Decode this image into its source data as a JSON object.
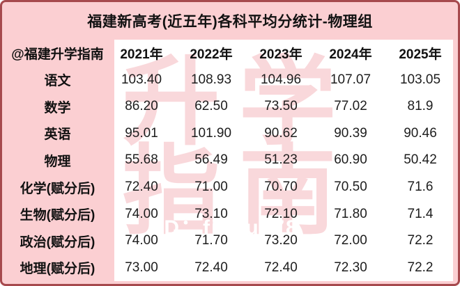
{
  "title": "福建新高考(近五年)各科平均分统计-物理组",
  "watermark": {
    "chars": [
      "升",
      "学",
      "指",
      "南"
    ],
    "id_text": "ID：fjedu678"
  },
  "colors": {
    "background_pink": "#fbcfd2",
    "border_red": "#a6494d",
    "panel_white": "#ffffff",
    "watermark_pink": "#f9d8db",
    "text_black": "#111111"
  },
  "chart_data": {
    "type": "table",
    "title": "福建新高考(近五年)各科平均分统计-物理组",
    "columns": [
      "@福建升学指南",
      "2021年",
      "2022年",
      "2023年",
      "2024年",
      "2025年"
    ],
    "rows": [
      {
        "label": "语文",
        "values": [
          "103.40",
          "108.93",
          "104.96",
          "107.07",
          "103.05"
        ]
      },
      {
        "label": "数学",
        "values": [
          "86.20",
          "62.50",
          "73.50",
          "77.02",
          "81.9"
        ]
      },
      {
        "label": "英语",
        "values": [
          "95.01",
          "101.90",
          "90.62",
          "90.39",
          "90.46"
        ]
      },
      {
        "label": "物理",
        "values": [
          "55.68",
          "56.49",
          "51.23",
          "60.90",
          "50.42"
        ]
      },
      {
        "label": "化学(赋分后)",
        "values": [
          "72.40",
          "71.00",
          "70.70",
          "70.50",
          "71.6"
        ]
      },
      {
        "label": "生物(赋分后)",
        "values": [
          "74.00",
          "73.10",
          "72.10",
          "71.80",
          "71.4"
        ]
      },
      {
        "label": "政治(赋分后)",
        "values": [
          "74.00",
          "71.70",
          "73.20",
          "72.00",
          "72.2"
        ]
      },
      {
        "label": "地理(赋分后)",
        "values": [
          "73.00",
          "72.40",
          "72.40",
          "72.30",
          "72.2"
        ]
      }
    ]
  }
}
